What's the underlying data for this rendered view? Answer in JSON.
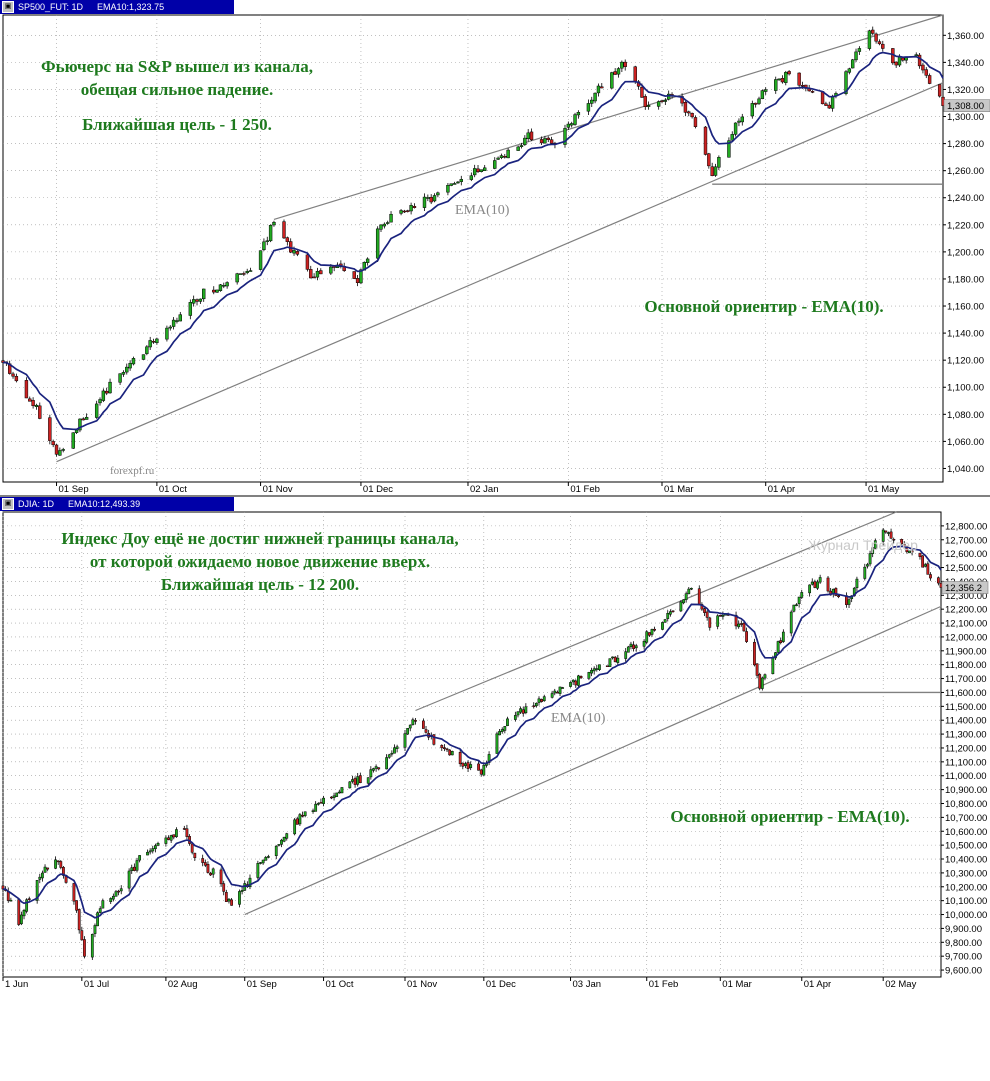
{
  "charts": [
    {
      "id": "top",
      "titlebar": {
        "symbol": "SP500_FUT: 1D",
        "ema": "EMA10:1,323.75"
      },
      "annotation_lines": [
        "Фьючерс на S&P вышел из канала,",
        "обещая сильное падение."
      ],
      "target_line": "Ближайшая цель - 1 250.",
      "guide_text": "Основной ориентир - EMA(10).",
      "ema_label": "EMA(10)",
      "watermark": "forexpf.ru",
      "last_price_label": "1,308.00",
      "colors": {
        "up": "#22aa22",
        "down": "#cc2222",
        "ema": "#1a237e",
        "channel": "#808080",
        "text": "#1e7a1e"
      }
    },
    {
      "id": "bottom",
      "titlebar": {
        "symbol": "DJIA: 1D",
        "ema": "EMA10:12,493.39"
      },
      "annotation_lines": [
        "Индекс Доу ещё не достиг нижней границы канала,",
        "от которой ожидаемо новое движение вверх."
      ],
      "target_line": "Ближайшая цель - 12 200.",
      "guide_text": "Основной ориентир - EMA(10).",
      "ema_label": "EMA(10)",
      "watermark": "Журнал Трейдер",
      "last_price_label": "12,356.2",
      "colors": {
        "up": "#22aa22",
        "down": "#cc2222",
        "ema": "#1a237e",
        "channel": "#808080",
        "text": "#1e7a1e"
      }
    }
  ],
  "chart_data": [
    {
      "type": "candlestick",
      "series": [
        {
          "name": "SP500_FUT: 1D"
        },
        {
          "name": "EMA(10)"
        }
      ],
      "x_range": [
        "2010-08-16",
        "2011-05-24"
      ],
      "ylim": [
        1030,
        1375
      ],
      "y_ticks": [
        1040,
        1060,
        1080,
        1100,
        1120,
        1140,
        1160,
        1180,
        1200,
        1220,
        1240,
        1260,
        1280,
        1300,
        1320,
        1340,
        1360
      ],
      "y_tick_labels": [
        "1,040.00",
        "1,060.00",
        "1,080.00",
        "1,100.00",
        "1,120.00",
        "1,140.00",
        "1,160.00",
        "1,180.00",
        "1,200.00",
        "1,220.00",
        "1,240.00",
        "1,260.00",
        "1,280.00",
        "1,300.00",
        "1,320.00",
        "1,340.00",
        "1,360.00"
      ],
      "x_ticks": [
        {
          "date": "2010-09-01",
          "label": "01 Sep"
        },
        {
          "date": "2010-10-01",
          "label": "01 Oct"
        },
        {
          "date": "2010-11-01",
          "label": "01 Nov"
        },
        {
          "date": "2010-12-01",
          "label": "01 Dec"
        },
        {
          "date": "2011-01-02",
          "label": "02 Jan"
        },
        {
          "date": "2011-02-01",
          "label": "01 Feb"
        },
        {
          "date": "2011-03-01",
          "label": "01 Mar"
        },
        {
          "date": "2011-04-01",
          "label": "01 Apr"
        },
        {
          "date": "2011-05-01",
          "label": "01 May"
        }
      ],
      "anchors": [
        [
          "2010-08-16",
          1120
        ],
        [
          "2010-08-27",
          1080
        ],
        [
          "2010-09-01",
          1050
        ],
        [
          "2010-09-08",
          1075
        ],
        [
          "2010-09-22",
          1115
        ],
        [
          "2010-10-15",
          1170
        ],
        [
          "2010-10-29",
          1185
        ],
        [
          "2010-11-05",
          1222
        ],
        [
          "2010-11-16",
          1180
        ],
        [
          "2010-11-23",
          1190
        ],
        [
          "2010-11-30",
          1178
        ],
        [
          "2010-12-07",
          1222
        ],
        [
          "2010-12-22",
          1240
        ],
        [
          "2011-01-05",
          1260
        ],
        [
          "2011-01-20",
          1285
        ],
        [
          "2011-01-28",
          1280
        ],
        [
          "2011-02-04",
          1305
        ],
        [
          "2011-02-18",
          1340
        ],
        [
          "2011-02-25",
          1305
        ],
        [
          "2011-03-04",
          1315
        ],
        [
          "2011-03-10",
          1300
        ],
        [
          "2011-03-16",
          1255
        ],
        [
          "2011-03-22",
          1290
        ],
        [
          "2011-04-01",
          1320
        ],
        [
          "2011-04-07",
          1330
        ],
        [
          "2011-04-13",
          1320
        ],
        [
          "2011-04-19",
          1305
        ],
        [
          "2011-04-26",
          1335
        ],
        [
          "2011-05-02",
          1365
        ],
        [
          "2011-05-09",
          1340
        ],
        [
          "2011-05-16",
          1345
        ],
        [
          "2011-05-20",
          1325
        ],
        [
          "2011-05-24",
          1308
        ]
      ],
      "channel": {
        "upper": [
          [
            "2010-11-05",
            1224
          ],
          [
            "2011-05-24",
            1398
          ]
        ],
        "lower": [
          [
            "2010-09-01",
            1045
          ],
          [
            "2011-05-24",
            1325
          ]
        ]
      },
      "support": {
        "from": "2011-03-16",
        "value": 1250
      },
      "last_price": 1308
    },
    {
      "type": "candlestick",
      "series": [
        {
          "name": "DJIA: 1D"
        },
        {
          "name": "EMA(10)"
        }
      ],
      "x_range": [
        "2010-06-01",
        "2011-05-24"
      ],
      "ylim": [
        9550,
        12900
      ],
      "y_ticks": [
        9600,
        9700,
        9800,
        9900,
        10000,
        10100,
        10200,
        10300,
        10400,
        10500,
        10600,
        10700,
        10800,
        10900,
        11000,
        11100,
        11200,
        11300,
        11400,
        11500,
        11600,
        11700,
        11800,
        11900,
        12000,
        12100,
        12200,
        12300,
        12400,
        12500,
        12600,
        12700,
        12800
      ],
      "y_tick_labels": [
        "9,600.00",
        "9,700.00",
        "9,800.00",
        "9,900.00",
        "10,000.00",
        "10,100.00",
        "10,200.00",
        "10,300.00",
        "10,400.00",
        "10,500.00",
        "10,600.00",
        "10,700.00",
        "10,800.00",
        "10,900.00",
        "11,000.00",
        "11,100.00",
        "11,200.00",
        "11,300.00",
        "11,400.00",
        "11,500.00",
        "11,600.00",
        "11,700.00",
        "11,800.00",
        "11,900.00",
        "12,000.00",
        "12,100.00",
        "12,200.00",
        "12,300.00",
        "12,400.00",
        "12,500.00",
        "12,600.00",
        "12,700.00",
        "12,800.00"
      ],
      "x_ticks": [
        {
          "date": "2010-06-01",
          "label": "1 Jun"
        },
        {
          "date": "2010-07-01",
          "label": "01 Jul"
        },
        {
          "date": "2010-08-02",
          "label": "02 Aug"
        },
        {
          "date": "2010-09-01",
          "label": "01 Sep"
        },
        {
          "date": "2010-10-01",
          "label": "01 Oct"
        },
        {
          "date": "2010-11-01",
          "label": "01 Nov"
        },
        {
          "date": "2010-12-01",
          "label": "01 Dec"
        },
        {
          "date": "2011-01-03",
          "label": "03 Jan"
        },
        {
          "date": "2011-02-01",
          "label": "01 Feb"
        },
        {
          "date": "2011-03-01",
          "label": "01 Mar"
        },
        {
          "date": "2011-04-01",
          "label": "01 Apr"
        },
        {
          "date": "2011-05-02",
          "label": "02 May"
        }
      ],
      "anchors": [
        [
          "2010-06-01",
          10200
        ],
        [
          "2010-06-07",
          9950
        ],
        [
          "2010-06-14",
          10250
        ],
        [
          "2010-06-21",
          10400
        ],
        [
          "2010-06-28",
          10100
        ],
        [
          "2010-07-02",
          9700
        ],
        [
          "2010-07-09",
          10100
        ],
        [
          "2010-07-16",
          10200
        ],
        [
          "2010-07-23",
          10400
        ],
        [
          "2010-07-30",
          10500
        ],
        [
          "2010-08-09",
          10650
        ],
        [
          "2010-08-13",
          10400
        ],
        [
          "2010-08-20",
          10300
        ],
        [
          "2010-08-27",
          10050
        ],
        [
          "2010-09-01",
          10200
        ],
        [
          "2010-09-08",
          10400
        ],
        [
          "2010-09-22",
          10700
        ],
        [
          "2010-10-08",
          10900
        ],
        [
          "2010-10-22",
          11050
        ],
        [
          "2010-11-05",
          11400
        ],
        [
          "2010-11-12",
          11250
        ],
        [
          "2010-11-19",
          11150
        ],
        [
          "2010-11-30",
          11000
        ],
        [
          "2010-12-07",
          11350
        ],
        [
          "2010-12-22",
          11550
        ],
        [
          "2011-01-07",
          11700
        ],
        [
          "2011-01-21",
          11850
        ],
        [
          "2011-02-04",
          12050
        ],
        [
          "2011-02-18",
          12350
        ],
        [
          "2011-02-25",
          12100
        ],
        [
          "2011-03-04",
          12150
        ],
        [
          "2011-03-10",
          12050
        ],
        [
          "2011-03-16",
          11650
        ],
        [
          "2011-03-22",
          11900
        ],
        [
          "2011-04-01",
          12350
        ],
        [
          "2011-04-08",
          12400
        ],
        [
          "2011-04-18",
          12250
        ],
        [
          "2011-04-25",
          12500
        ],
        [
          "2011-05-02",
          12800
        ],
        [
          "2011-05-09",
          12650
        ],
        [
          "2011-05-16",
          12550
        ],
        [
          "2011-05-24",
          12356
        ]
      ],
      "channel": {
        "upper": [
          [
            "2010-11-05",
            11470
          ],
          [
            "2011-05-07",
            12900
          ]
        ],
        "lower": [
          [
            "2010-09-01",
            10000
          ],
          [
            "2011-05-24",
            12220
          ]
        ]
      },
      "support": {
        "from": "2011-03-16",
        "value": 11600
      },
      "last_price": 12356
    }
  ]
}
